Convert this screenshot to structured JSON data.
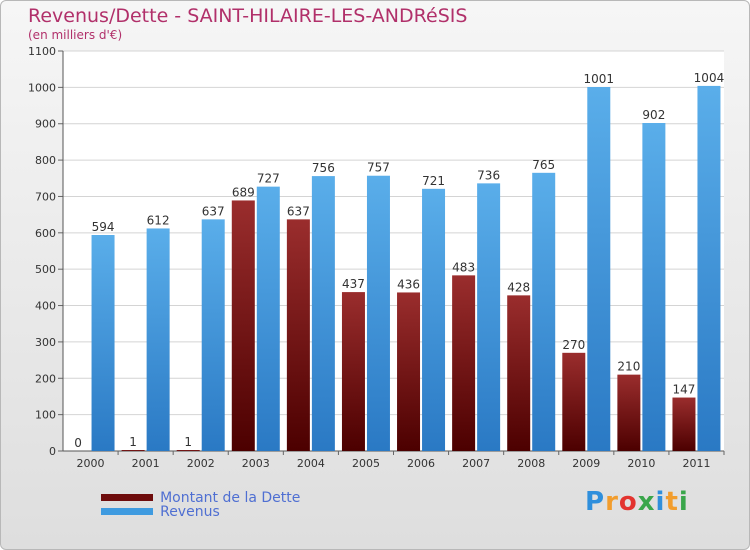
{
  "chart_data": {
    "type": "bar",
    "title": "Revenus/Dette - SAINT-HILAIRE-LES-ANDRéSIS",
    "subtitle": "(en milliers d'€)",
    "categories": [
      "2000",
      "2001",
      "2002",
      "2003",
      "2004",
      "2005",
      "2006",
      "2007",
      "2008",
      "2009",
      "2010",
      "2011"
    ],
    "series": [
      {
        "name": "Montant de la Dette",
        "color": "#7a1515",
        "values": [
          0,
          1,
          1,
          689,
          637,
          437,
          436,
          483,
          428,
          270,
          210,
          147
        ]
      },
      {
        "name": "Revenus",
        "color": "#3f9be0",
        "values": [
          594,
          612,
          637,
          727,
          756,
          757,
          721,
          736,
          765,
          1001,
          902,
          1004
        ]
      }
    ],
    "ylim": [
      0,
      1100
    ],
    "yticks": [
      0,
      100,
      200,
      300,
      400,
      500,
      600,
      700,
      800,
      900,
      1000,
      1100
    ],
    "grid": true,
    "legend_position": "bottom-left"
  },
  "logo": {
    "letters": [
      "P",
      "r",
      "o",
      "x",
      "i",
      "t",
      "i"
    ],
    "colors": [
      "#2f8fdc",
      "#f29d2d",
      "#e3342f",
      "#3aa64b",
      "#2f8fdc",
      "#f29d2d",
      "#3aa64b"
    ]
  }
}
